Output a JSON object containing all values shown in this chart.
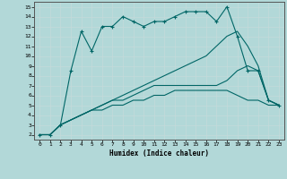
{
  "xlabel": "Humidex (Indice chaleur)",
  "background_color": "#b2d8d8",
  "line_color": "#006666",
  "xlim": [
    -0.5,
    23.5
  ],
  "ylim": [
    1.5,
    15.5
  ],
  "xticks": [
    0,
    1,
    2,
    3,
    4,
    5,
    6,
    7,
    8,
    9,
    10,
    11,
    12,
    13,
    14,
    15,
    16,
    17,
    18,
    19,
    20,
    21,
    22,
    23
  ],
  "yticks": [
    2,
    3,
    4,
    5,
    6,
    7,
    8,
    9,
    10,
    11,
    12,
    13,
    14,
    15
  ],
  "line1_x": [
    0,
    1,
    2,
    3,
    4,
    5,
    6,
    7,
    8,
    9,
    10,
    11,
    12,
    13,
    14,
    15,
    16,
    17,
    18,
    19,
    20,
    21,
    22,
    23
  ],
  "line1_y": [
    2,
    2,
    3,
    8.5,
    12.5,
    10.5,
    13,
    13,
    14,
    13.5,
    13,
    13.5,
    13.5,
    14,
    14.5,
    14.5,
    14.5,
    13.5,
    15,
    12,
    8.5,
    8.5,
    5.5,
    5
  ],
  "line2_x": [
    0,
    1,
    2,
    3,
    4,
    5,
    6,
    7,
    8,
    9,
    10,
    11,
    12,
    13,
    14,
    15,
    16,
    17,
    18,
    19,
    20,
    21,
    22,
    23
  ],
  "line2_y": [
    2,
    2,
    3,
    3.5,
    4,
    4.5,
    5,
    5.5,
    6,
    6.5,
    7,
    7.5,
    8,
    8.5,
    9,
    9.5,
    10,
    11,
    12,
    12.5,
    11,
    9,
    5.5,
    5
  ],
  "line3_x": [
    0,
    1,
    2,
    3,
    4,
    5,
    6,
    7,
    8,
    9,
    10,
    11,
    12,
    13,
    14,
    15,
    16,
    17,
    18,
    19,
    20,
    21,
    22,
    23
  ],
  "line3_y": [
    2,
    2,
    3,
    3.5,
    4,
    4.5,
    5,
    5.5,
    5.5,
    6,
    6.5,
    7,
    7,
    7,
    7,
    7,
    7,
    7,
    7.5,
    8.5,
    9,
    8.5,
    5.5,
    5
  ],
  "line4_x": [
    0,
    1,
    2,
    3,
    4,
    5,
    6,
    7,
    8,
    9,
    10,
    11,
    12,
    13,
    14,
    15,
    16,
    17,
    18,
    19,
    20,
    21,
    22,
    23
  ],
  "line4_y": [
    2,
    2,
    3,
    3.5,
    4,
    4.5,
    4.5,
    5,
    5,
    5.5,
    5.5,
    6,
    6,
    6.5,
    6.5,
    6.5,
    6.5,
    6.5,
    6.5,
    6,
    5.5,
    5.5,
    5,
    5
  ]
}
